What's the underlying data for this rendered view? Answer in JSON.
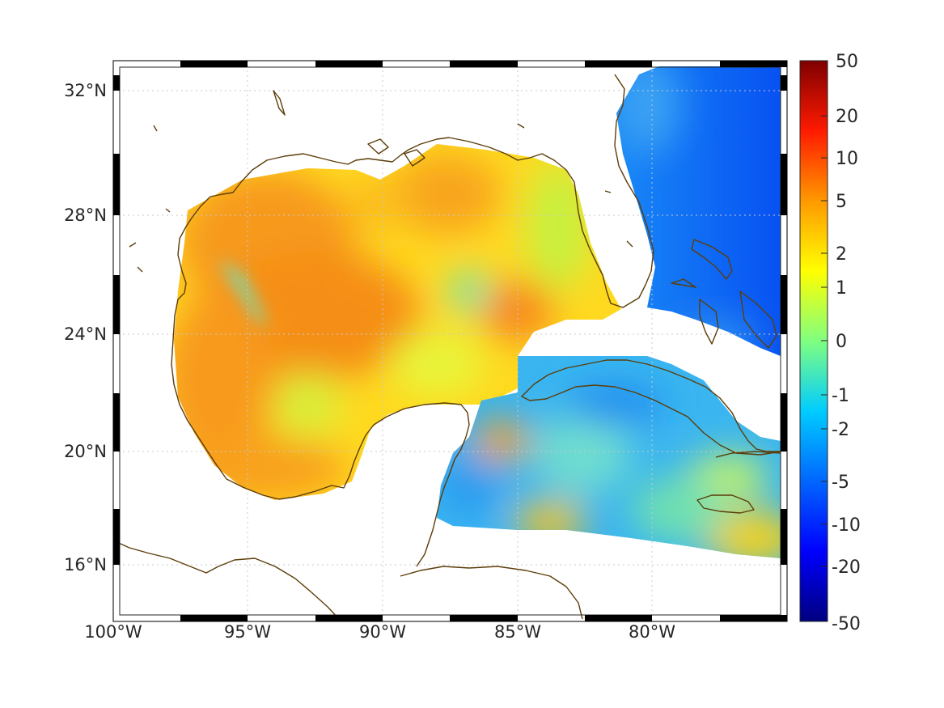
{
  "map": {
    "lat_labels": [
      "32°N",
      "28°N",
      "24°N",
      "20°N",
      "16°N"
    ],
    "lon_labels": [
      "100°W",
      "95°W",
      "90°W",
      "85°W",
      "80°W"
    ]
  },
  "colorbar": {
    "labels": [
      "50",
      "20",
      "10",
      "5",
      "2",
      "1",
      "0",
      "-1",
      "-2",
      "-5",
      "-10",
      "-20",
      "-50"
    ],
    "colors": [
      "#7f0000",
      "#ff0000",
      "#ff8000",
      "#ffff00",
      "#80ff80",
      "#00ffff",
      "#0080ff",
      "#0000ff",
      "#00007f"
    ]
  },
  "colors": {
    "land_outline": "#5c3d0a",
    "ocean_warm": "#f7a61b",
    "ocean_mid": "#ffe62a",
    "ocean_cool": "#21a5f2",
    "atlantic": "#0a5ef5",
    "grid": "#c8c8c8"
  }
}
